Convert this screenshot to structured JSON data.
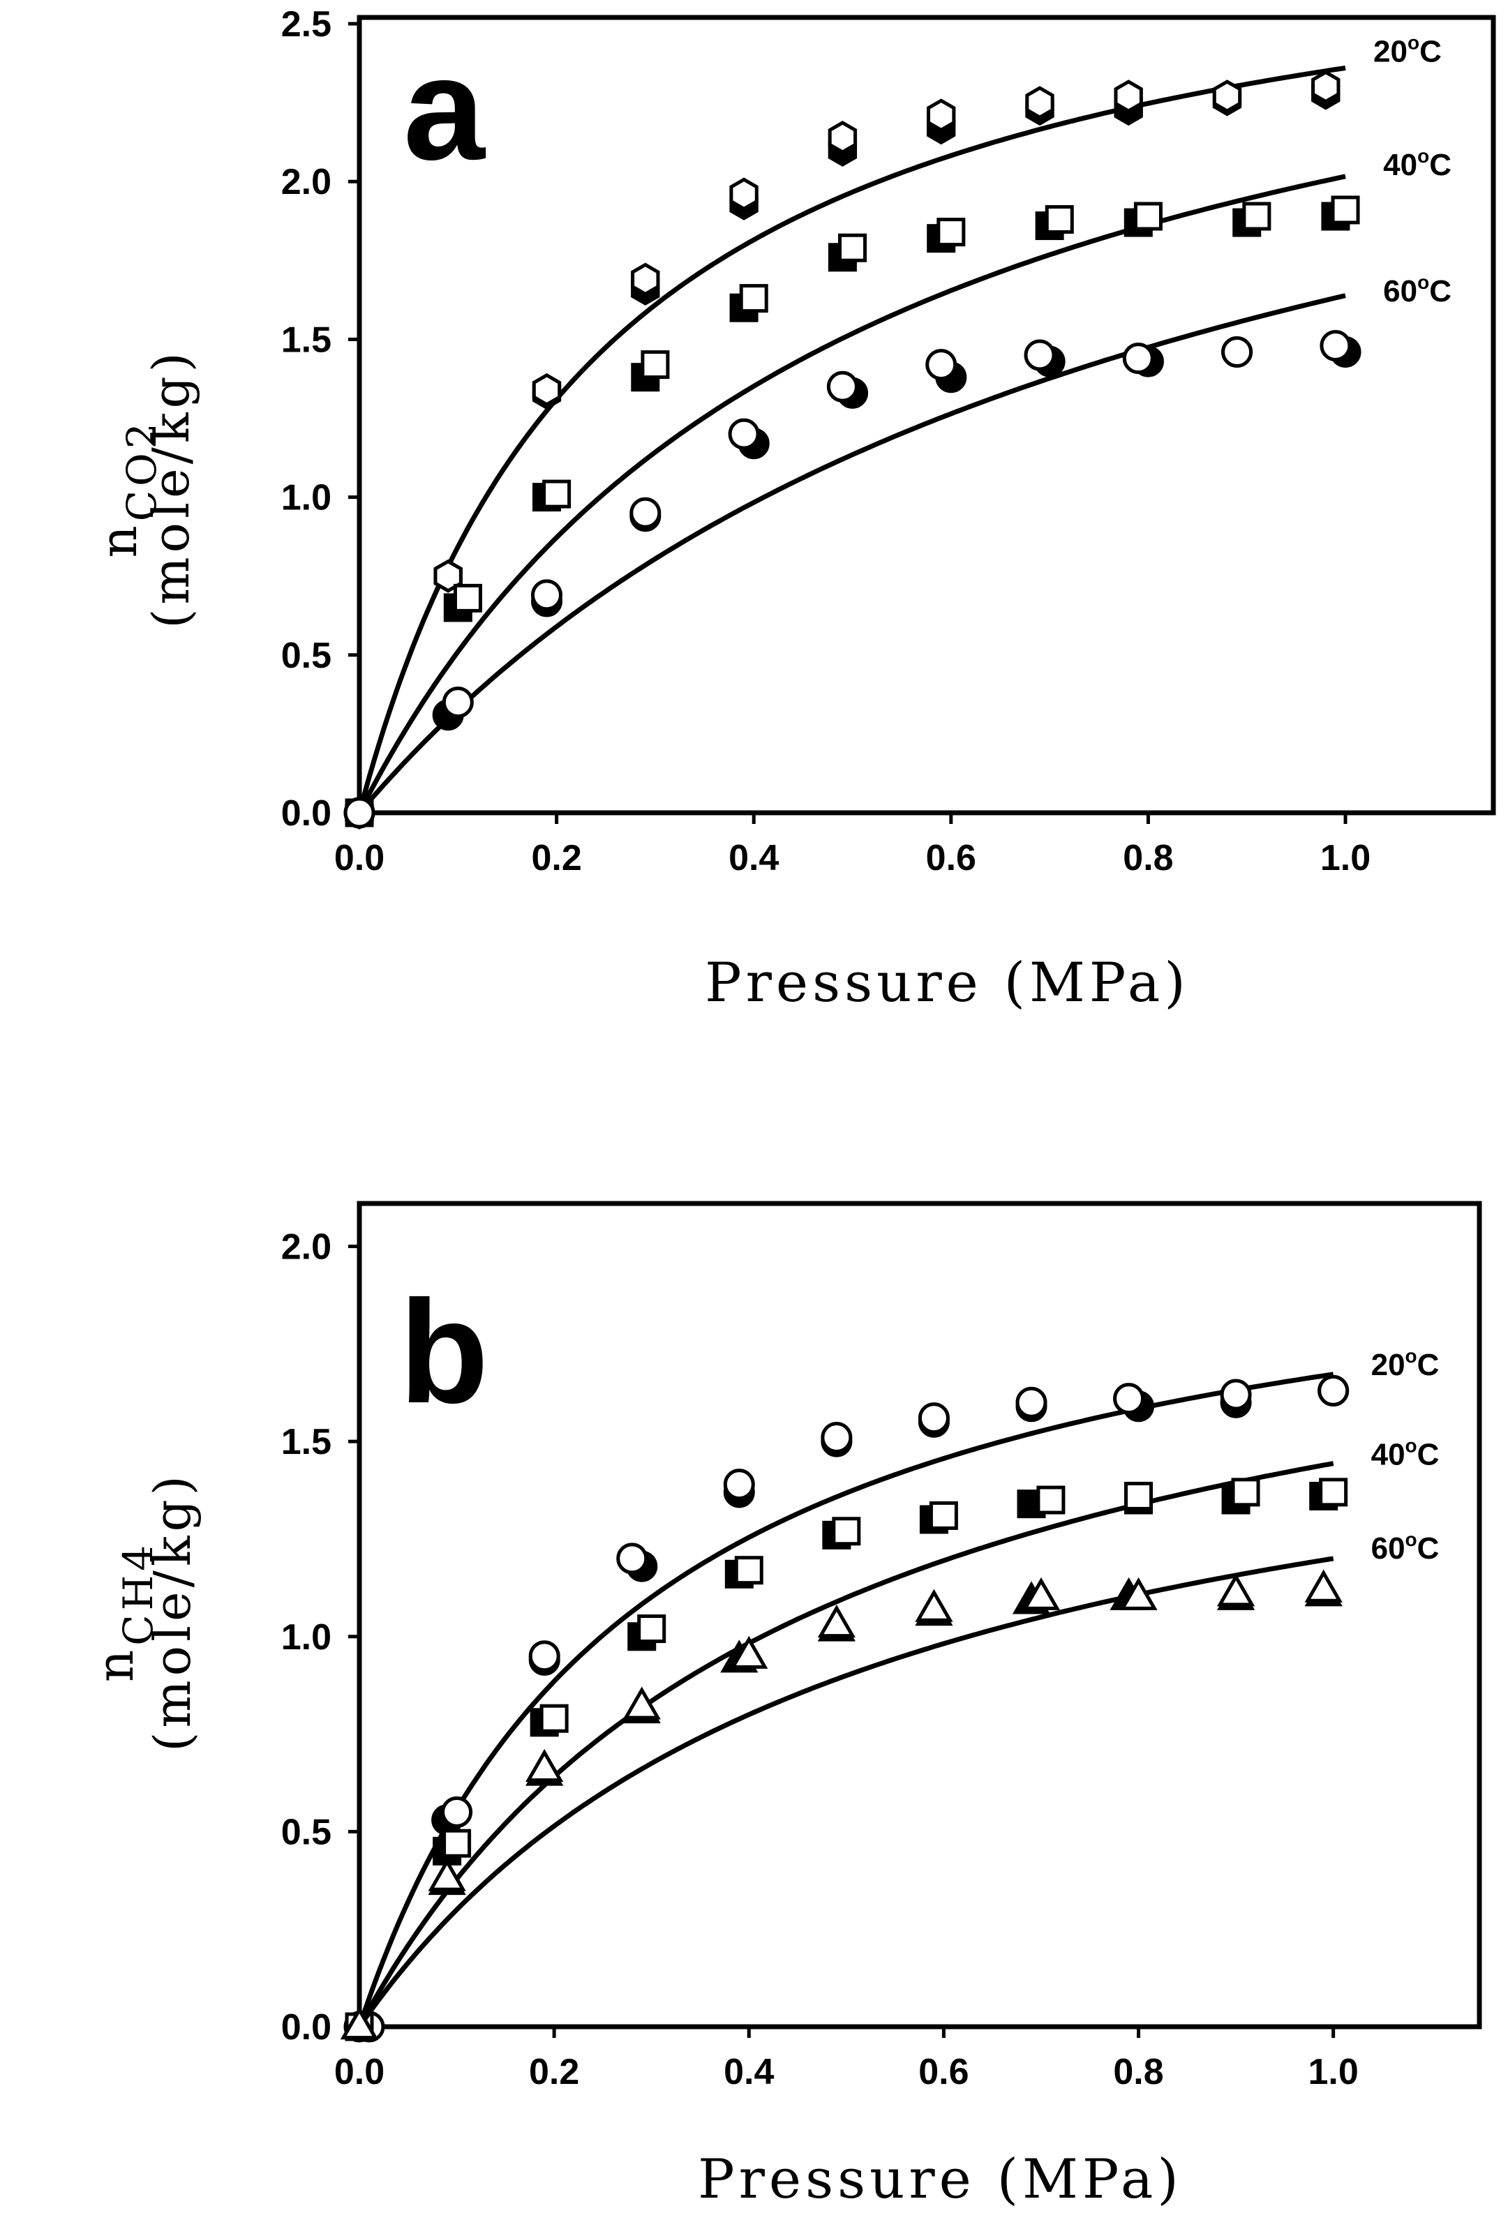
{
  "chart_data": [
    {
      "type": "scatter",
      "panel_label": "a",
      "xlabel": "Pressure (MPa)",
      "ylabel_main": "n",
      "ylabel_sub": "CO2",
      "ylabel_unit": "(mole/kg)",
      "xlim": [
        0,
        1.15
      ],
      "ylim": [
        0,
        2.52
      ],
      "xticks": [
        "0.0",
        "0.2",
        "0.4",
        "0.6",
        "0.8",
        "1.0"
      ],
      "xtick_values": [
        0,
        0.2,
        0.4,
        0.6,
        0.8,
        1.0
      ],
      "yticks": [
        "0.0",
        "0.5",
        "1.0",
        "1.5",
        "2.0",
        "2.5"
      ],
      "ytick_values": [
        0,
        0.5,
        1.0,
        1.5,
        2.0,
        2.5
      ],
      "series": [
        {
          "name": "20°C",
          "label_number": "20",
          "label_sup": "o",
          "label_unit": "C",
          "label_at": [
            1.0,
            2.38
          ],
          "fit_curve": {
            "model": "langmuir",
            "qmax": 2.95,
            "b": 4.0
          },
          "filled_marker": "hexagon-filled",
          "open_marker": "hexagon-open",
          "filled_points": {
            "x": [
              0.0,
              0.09,
              0.19,
              0.29,
              0.39,
              0.49,
              0.59,
              0.69,
              0.78,
              0.88,
              0.98
            ],
            "y": [
              0.0,
              0.75,
              1.33,
              1.66,
              1.93,
              2.1,
              2.17,
              2.23,
              2.23,
              2.26,
              2.28
            ]
          },
          "open_points": {
            "x": [
              0.0,
              0.09,
              0.19,
              0.29,
              0.39,
              0.49,
              0.59,
              0.69,
              0.78,
              0.88,
              0.98
            ],
            "y": [
              0.0,
              0.75,
              1.34,
              1.69,
              1.96,
              2.14,
              2.21,
              2.25,
              2.27,
              2.27,
              2.3
            ]
          }
        },
        {
          "name": "40°C",
          "label_number": "40",
          "label_sup": "o",
          "label_unit": "C",
          "label_at": [
            1.01,
            2.02
          ],
          "fit_curve": {
            "model": "langmuir",
            "qmax": 3.0,
            "b": 2.05
          },
          "filled_marker": "square-filled",
          "open_marker": "square-open",
          "filled_points": {
            "x": [
              0.0,
              0.1,
              0.19,
              0.29,
              0.39,
              0.49,
              0.59,
              0.7,
              0.79,
              0.9,
              0.99
            ],
            "y": [
              0.0,
              0.65,
              1.0,
              1.38,
              1.6,
              1.76,
              1.82,
              1.86,
              1.87,
              1.87,
              1.89
            ]
          },
          "open_points": {
            "x": [
              0.0,
              0.11,
              0.2,
              0.3,
              0.4,
              0.5,
              0.6,
              0.71,
              0.8,
              0.91,
              1.0
            ],
            "y": [
              0.0,
              0.68,
              1.01,
              1.42,
              1.63,
              1.79,
              1.84,
              1.88,
              1.89,
              1.89,
              1.91
            ]
          }
        },
        {
          "name": "60°C",
          "label_number": "60",
          "label_sup": "o",
          "label_unit": "C",
          "label_at": [
            1.01,
            1.62
          ],
          "fit_curve": {
            "model": "langmuir",
            "qmax": 2.95,
            "b": 1.25
          },
          "filled_marker": "circle-filled",
          "open_marker": "circle-open",
          "filled_points": {
            "x": [
              0.0,
              0.09,
              0.19,
              0.29,
              0.4,
              0.5,
              0.6,
              0.7,
              0.8,
              0.89,
              1.0
            ],
            "y": [
              0.0,
              0.31,
              0.67,
              0.94,
              1.17,
              1.33,
              1.38,
              1.43,
              1.43,
              1.46,
              1.46
            ]
          },
          "open_points": {
            "x": [
              0.0,
              0.1,
              0.19,
              0.29,
              0.39,
              0.49,
              0.59,
              0.69,
              0.79,
              0.89,
              0.99
            ],
            "y": [
              0.0,
              0.35,
              0.69,
              0.95,
              1.2,
              1.35,
              1.42,
              1.45,
              1.44,
              1.46,
              1.48
            ]
          }
        }
      ]
    },
    {
      "type": "scatter",
      "panel_label": "b",
      "xlabel": "Pressure (MPa)",
      "ylabel_main": "n",
      "ylabel_sub": "CH4",
      "ylabel_unit": "(mole/kg)",
      "xlim": [
        0,
        1.15
      ],
      "ylim": [
        0,
        2.11
      ],
      "xticks": [
        "0.0",
        "0.2",
        "0.4",
        "0.6",
        "0.8",
        "1.0"
      ],
      "xtick_values": [
        0,
        0.2,
        0.4,
        0.6,
        0.8,
        1.0
      ],
      "yticks": [
        "0.0",
        "0.5",
        "1.0",
        "1.5",
        "2.0"
      ],
      "ytick_values": [
        0,
        0.5,
        1.0,
        1.5,
        2.0
      ],
      "series": [
        {
          "name": "20°C",
          "label_number": "20",
          "label_sup": "o",
          "label_unit": "C",
          "label_at": [
            1.01,
            1.67
          ],
          "fit_curve": {
            "model": "langmuir",
            "qmax": 2.15,
            "b": 3.5
          },
          "filled_marker": "circle-filled",
          "open_marker": "circle-open",
          "filled_points": {
            "x": [
              0.0,
              0.09,
              0.19,
              0.29,
              0.39,
              0.49,
              0.59,
              0.69,
              0.8,
              0.9,
              1.0
            ],
            "y": [
              0.0,
              0.53,
              0.94,
              1.18,
              1.37,
              1.5,
              1.55,
              1.59,
              1.59,
              1.6,
              1.63
            ]
          },
          "open_points": {
            "x": [
              0.01,
              0.1,
              0.19,
              0.28,
              0.39,
              0.49,
              0.59,
              0.69,
              0.79,
              0.9,
              1.0
            ],
            "y": [
              0.0,
              0.55,
              0.95,
              1.2,
              1.39,
              1.51,
              1.56,
              1.6,
              1.61,
              1.62,
              1.63
            ]
          }
        },
        {
          "name": "40°C",
          "label_number": "40",
          "label_sup": "o",
          "label_unit": "C",
          "label_at": [
            1.01,
            1.44
          ],
          "fit_curve": {
            "model": "langmuir",
            "qmax": 2.1,
            "b": 2.2
          },
          "filled_marker": "square-filled",
          "open_marker": "square-open",
          "filled_points": {
            "x": [
              0.0,
              0.09,
              0.19,
              0.29,
              0.39,
              0.49,
              0.59,
              0.69,
              0.8,
              0.9,
              0.99
            ],
            "y": [
              0.0,
              0.45,
              0.78,
              1.0,
              1.16,
              1.26,
              1.3,
              1.34,
              1.35,
              1.35,
              1.36
            ]
          },
          "open_points": {
            "x": [
              0.0,
              0.1,
              0.2,
              0.3,
              0.4,
              0.5,
              0.6,
              0.71,
              0.8,
              0.91,
              1.0
            ],
            "y": [
              0.0,
              0.47,
              0.79,
              1.02,
              1.17,
              1.27,
              1.31,
              1.35,
              1.36,
              1.37,
              1.37
            ]
          }
        },
        {
          "name": "60°C",
          "label_number": "60",
          "label_sup": "o",
          "label_unit": "C",
          "label_at": [
            1.01,
            1.2
          ],
          "fit_curve": {
            "model": "langmuir",
            "qmax": 1.8,
            "b": 2.0
          },
          "filled_marker": "triangle-filled",
          "open_marker": "triangle-open",
          "filled_points": {
            "x": [
              0.0,
              0.09,
              0.19,
              0.29,
              0.39,
              0.49,
              0.59,
              0.69,
              0.79,
              0.9,
              0.99
            ],
            "y": [
              0.0,
              0.37,
              0.65,
              0.81,
              0.94,
              1.02,
              1.06,
              1.09,
              1.1,
              1.1,
              1.11
            ]
          },
          "open_points": {
            "x": [
              0.0,
              0.09,
              0.19,
              0.29,
              0.4,
              0.49,
              0.59,
              0.7,
              0.8,
              0.9,
              0.99
            ],
            "y": [
              0.0,
              0.38,
              0.66,
              0.82,
              0.95,
              1.03,
              1.07,
              1.1,
              1.1,
              1.11,
              1.12
            ]
          }
        }
      ]
    }
  ]
}
